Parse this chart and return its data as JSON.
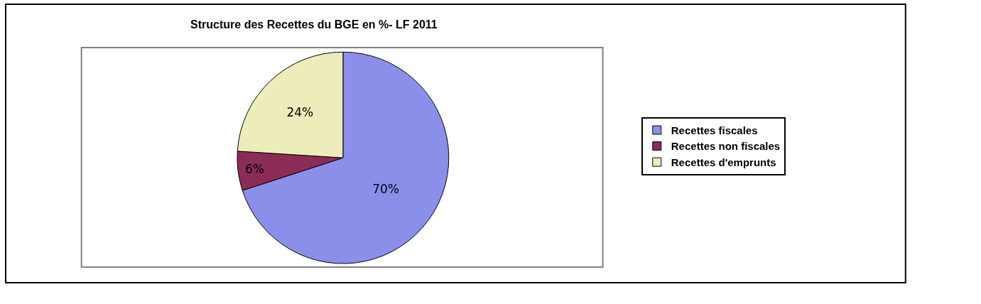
{
  "chart_data": {
    "type": "pie",
    "title": "Structure des Recettes du BGE en %- LF 2011",
    "categories": [
      "Recettes fiscales",
      "Recettes non fiscales",
      "Recettes d'emprunts"
    ],
    "values": [
      70,
      6,
      24
    ],
    "colors": [
      "#8b8fea",
      "#8b2c56",
      "#ededbb"
    ],
    "value_labels": [
      "70%",
      "6%",
      "24%"
    ],
    "legend": "right"
  }
}
